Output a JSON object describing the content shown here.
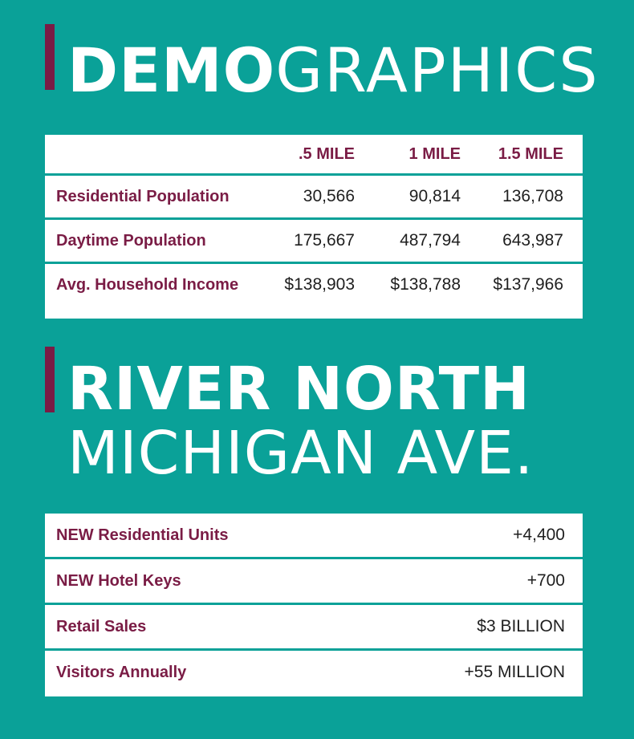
{
  "demographics": {
    "title_bold": "DEMO",
    "title_light": "GRAPHICS",
    "columns": [
      ".5 MILE",
      "1 MILE",
      "1.5 MILE"
    ],
    "rows": [
      {
        "label": "Residential Population",
        "values": [
          "30,566",
          "90,814",
          "136,708"
        ]
      },
      {
        "label": "Daytime Population",
        "values": [
          "175,667",
          "487,794",
          "643,987"
        ]
      },
      {
        "label": "Avg. Household Income",
        "values": [
          "$138,903",
          "$138,788",
          "$137,966"
        ]
      }
    ]
  },
  "river_north": {
    "title_line1": "RIVER NORTH",
    "title_line2": "MICHIGAN AVE.",
    "rows": [
      {
        "label": "NEW Residential Units",
        "value": "+4,400"
      },
      {
        "label": "NEW Hotel Keys",
        "value": "+700"
      },
      {
        "label": "Retail Sales",
        "value": "$3 BILLION"
      },
      {
        "label": "Visitors Annually",
        "value": "+55 MILLION"
      }
    ]
  },
  "colors": {
    "background": "#0aa198",
    "accent": "#7a1c45",
    "panel": "#ffffff",
    "text": "#1f1f1f"
  }
}
